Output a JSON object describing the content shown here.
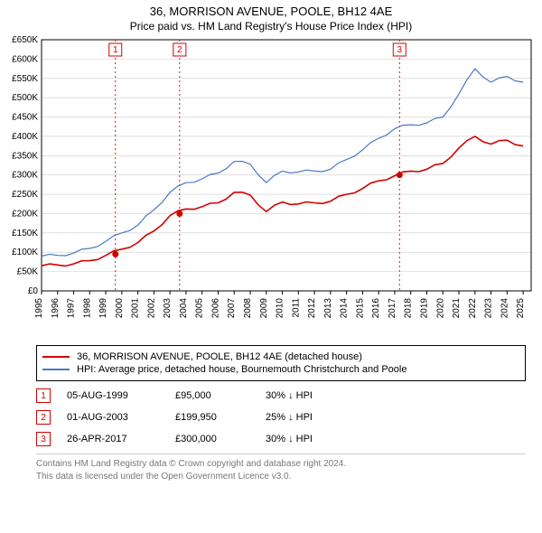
{
  "title": "36, MORRISON AVENUE, POOLE, BH12 4AE",
  "subtitle": "Price paid vs. HM Land Registry's House Price Index (HPI)",
  "chart": {
    "type": "line",
    "background": "#ffffff",
    "grid_color": "#cccccc",
    "axis_color": "#000000",
    "ylim": [
      0,
      650000
    ],
    "ytick_step": 50000,
    "ytick_labels": [
      "£0",
      "£50K",
      "£100K",
      "£150K",
      "£200K",
      "£250K",
      "£300K",
      "£350K",
      "£400K",
      "£450K",
      "£500K",
      "£550K",
      "£600K",
      "£650K"
    ],
    "xlim": [
      1995,
      2025.5
    ],
    "xticks": [
      1995,
      1996,
      1997,
      1998,
      1999,
      2000,
      2001,
      2002,
      2003,
      2004,
      2005,
      2006,
      2007,
      2008,
      2009,
      2010,
      2011,
      2012,
      2013,
      2014,
      2015,
      2016,
      2017,
      2018,
      2019,
      2020,
      2021,
      2022,
      2023,
      2024,
      2025
    ],
    "series": [
      {
        "name": "hpi",
        "label": "HPI: Average price, detached house, Bournemouth Christchurch and Poole",
        "color": "#4a78c4",
        "line_width": 1.2,
        "data": [
          [
            1995,
            90000
          ],
          [
            1996,
            92000
          ],
          [
            1997,
            98000
          ],
          [
            1998,
            110000
          ],
          [
            1999,
            128000
          ],
          [
            2000,
            150000
          ],
          [
            2001,
            170000
          ],
          [
            2002,
            210000
          ],
          [
            2003,
            255000
          ],
          [
            2004,
            280000
          ],
          [
            2005,
            290000
          ],
          [
            2006,
            305000
          ],
          [
            2007,
            335000
          ],
          [
            2008,
            328000
          ],
          [
            2009,
            280000
          ],
          [
            2010,
            310000
          ],
          [
            2011,
            308000
          ],
          [
            2012,
            310000
          ],
          [
            2013,
            315000
          ],
          [
            2014,
            340000
          ],
          [
            2015,
            365000
          ],
          [
            2016,
            395000
          ],
          [
            2017,
            420000
          ],
          [
            2018,
            430000
          ],
          [
            2019,
            435000
          ],
          [
            2020,
            450000
          ],
          [
            2021,
            510000
          ],
          [
            2022,
            575000
          ],
          [
            2023,
            540000
          ],
          [
            2024,
            555000
          ],
          [
            2025,
            540000
          ]
        ]
      },
      {
        "name": "price_paid",
        "label": "36, MORRISON AVENUE, POOLE, BH12 4AE (detached house)",
        "color": "#d40000",
        "line_width": 1.6,
        "data": [
          [
            1995,
            65000
          ],
          [
            1996,
            67000
          ],
          [
            1997,
            70000
          ],
          [
            1998,
            78000
          ],
          [
            1999,
            92000
          ],
          [
            2000,
            108000
          ],
          [
            2001,
            125000
          ],
          [
            2002,
            155000
          ],
          [
            2003,
            195000
          ],
          [
            2004,
            212000
          ],
          [
            2005,
            218000
          ],
          [
            2006,
            228000
          ],
          [
            2007,
            255000
          ],
          [
            2008,
            248000
          ],
          [
            2009,
            205000
          ],
          [
            2010,
            230000
          ],
          [
            2011,
            225000
          ],
          [
            2012,
            228000
          ],
          [
            2013,
            232000
          ],
          [
            2014,
            250000
          ],
          [
            2015,
            265000
          ],
          [
            2016,
            285000
          ],
          [
            2017,
            298000
          ],
          [
            2018,
            310000
          ],
          [
            2019,
            315000
          ],
          [
            2020,
            330000
          ],
          [
            2021,
            370000
          ],
          [
            2022,
            400000
          ],
          [
            2023,
            380000
          ],
          [
            2024,
            390000
          ],
          [
            2025,
            375000
          ]
        ]
      }
    ],
    "event_markers": [
      {
        "num": "1",
        "x": 1999.6,
        "y": 95000,
        "color": "#d40000"
      },
      {
        "num": "2",
        "x": 2003.6,
        "y": 199950,
        "color": "#d40000"
      },
      {
        "num": "3",
        "x": 2017.3,
        "y": 300000,
        "color": "#d40000"
      }
    ]
  },
  "legend": [
    {
      "color": "#d40000",
      "label": "36, MORRISON AVENUE, POOLE, BH12 4AE (detached house)"
    },
    {
      "color": "#4a78c4",
      "label": "HPI: Average price, detached house, Bournemouth Christchurch and Poole"
    }
  ],
  "transactions": [
    {
      "num": "1",
      "color": "#d40000",
      "date": "05-AUG-1999",
      "price": "£95,000",
      "hpi": "30% ↓ HPI"
    },
    {
      "num": "2",
      "color": "#d40000",
      "date": "01-AUG-2003",
      "price": "£199,950",
      "hpi": "25% ↓ HPI"
    },
    {
      "num": "3",
      "color": "#d40000",
      "date": "26-APR-2017",
      "price": "£300,000",
      "hpi": "30% ↓ HPI"
    }
  ],
  "footer": {
    "line1": "Contains HM Land Registry data © Crown copyright and database right 2024.",
    "line2": "This data is licensed under the Open Government Licence v3.0."
  }
}
